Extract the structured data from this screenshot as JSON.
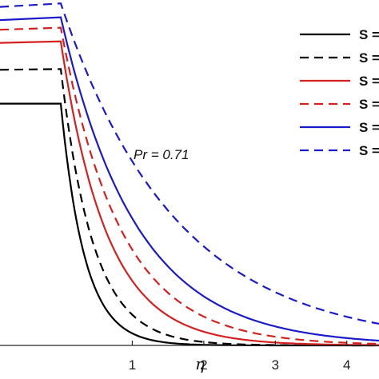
{
  "chart_data": {
    "type": "line",
    "annotation": "Pr = 0.71",
    "xlabel": "η",
    "xlim": [
      -0.85,
      4.45
    ],
    "ylim": [
      0,
      1
    ],
    "x_ticks": [
      1,
      2,
      3,
      4
    ],
    "x_tick_labels": [
      "1",
      "2",
      "3",
      "4"
    ],
    "legend_position": "top-right",
    "legend_labels": [
      "S =",
      "S =",
      "S =",
      "S =",
      "S =",
      "S ="
    ],
    "grid": false,
    "series": [
      {
        "color": "#000000",
        "dash": "solid",
        "decay": 3.0,
        "points": [
          [
            -0.85,
            0.778
          ],
          [
            0,
            0.7
          ],
          [
            0.5,
            0.181
          ],
          [
            1.0,
            0.035
          ],
          [
            1.5,
            0.007
          ],
          [
            2.0,
            0.001
          ],
          [
            3.0,
            0.0
          ],
          [
            4.0,
            0.0
          ],
          [
            4.45,
            0.0
          ]
        ]
      },
      {
        "color": "#000000",
        "dash": "dashed",
        "decay": 2.2,
        "points": [
          [
            -0.85,
            0.774
          ],
          [
            0,
            0.8
          ],
          [
            0.5,
            0.312
          ],
          [
            1.0,
            0.089
          ],
          [
            1.5,
            0.025
          ],
          [
            2.0,
            0.007
          ],
          [
            3.0,
            0.001
          ],
          [
            4.0,
            0.0
          ],
          [
            4.45,
            0.0
          ]
        ]
      },
      {
        "color": "#d62020",
        "dash": "solid",
        "decay": 1.55,
        "points": [
          [
            -0.85,
            0.77
          ],
          [
            0,
            0.88
          ],
          [
            0.5,
            0.46
          ],
          [
            1.0,
            0.187
          ],
          [
            1.5,
            0.085
          ],
          [
            2.0,
            0.039
          ],
          [
            3.0,
            0.008
          ],
          [
            4.0,
            0.002
          ],
          [
            4.45,
            0.0
          ]
        ]
      },
      {
        "color": "#d62020",
        "dash": "dashed",
        "decay": 1.2,
        "points": [
          [
            -0.85,
            0.766
          ],
          [
            0,
            0.92
          ],
          [
            0.5,
            0.503
          ],
          [
            1.0,
            0.276
          ],
          [
            1.5,
            0.152
          ],
          [
            2.0,
            0.083
          ],
          [
            3.0,
            0.025
          ],
          [
            4.0,
            0.008
          ],
          [
            4.45,
            0.0
          ]
        ]
      },
      {
        "color": "#1a1acc",
        "dash": "solid",
        "decay": 0.95,
        "points": [
          [
            -0.85,
            0.762
          ],
          [
            0,
            0.95
          ],
          [
            0.5,
            0.595
          ],
          [
            1.0,
            0.373
          ],
          [
            1.5,
            0.228
          ],
          [
            2.0,
            0.142
          ],
          [
            3.0,
            0.055
          ],
          [
            4.0,
            0.021
          ],
          [
            4.45,
            0.0
          ]
        ]
      },
      {
        "color": "#1a1acc",
        "dash": "dashed",
        "decay": 0.62,
        "points": [
          [
            -0.85,
            0.758
          ],
          [
            0,
            0.99
          ],
          [
            0.5,
            0.725
          ],
          [
            1.0,
            0.533
          ],
          [
            1.5,
            0.389
          ],
          [
            2.0,
            0.285
          ],
          [
            3.0,
            0.152
          ],
          [
            4.0,
            0.08
          ],
          [
            4.45,
            0.0
          ]
        ]
      }
    ]
  }
}
